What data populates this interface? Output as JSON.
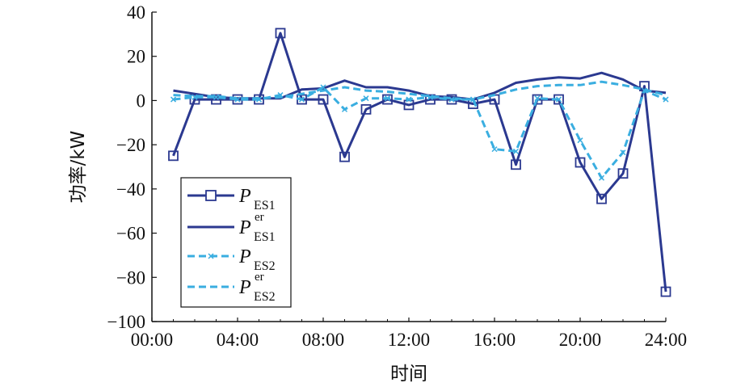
{
  "chart_data": {
    "type": "line",
    "title": "",
    "xlabel": "时间",
    "ylabel": "功率/kW",
    "xlim": [
      0,
      24
    ],
    "ylim": [
      -100,
      40
    ],
    "x_ticks": [
      "00:00",
      "04:00",
      "08:00",
      "12:00",
      "16:00",
      "20:00",
      "24:00"
    ],
    "y_ticks": [
      "40",
      "20",
      "0",
      "−20",
      "−40",
      "−60",
      "−80",
      "−100"
    ],
    "x": [
      1,
      2,
      3,
      4,
      5,
      6,
      7,
      8,
      9,
      10,
      11,
      12,
      13,
      14,
      15,
      16,
      17,
      18,
      19,
      20,
      21,
      22,
      23,
      24
    ],
    "grid": false,
    "legend_position": "lower-left",
    "series": [
      {
        "name": "P_ES1",
        "legend_main": "P",
        "legend_sub": "ES1",
        "legend_sup": "",
        "color": "#2b3990",
        "style": "solid",
        "marker": "square",
        "values": [
          -25,
          0.5,
          0.5,
          0.5,
          0.5,
          30.5,
          0.5,
          0.5,
          -25.5,
          -4,
          0.5,
          -2,
          0.5,
          0.5,
          -1.5,
          0.5,
          -29,
          0.5,
          0.5,
          -28,
          -44.5,
          -33,
          6.5,
          -86.5
        ]
      },
      {
        "name": "P_ES1^er",
        "legend_main": "P",
        "legend_sub": "ES1",
        "legend_sup": "er",
        "color": "#2b3990",
        "style": "solid",
        "marker": "none",
        "values": [
          4.5,
          3,
          1.5,
          1,
          1,
          1,
          5,
          5.5,
          9,
          6,
          6,
          4.5,
          2,
          1.5,
          0.5,
          3.5,
          8,
          9.5,
          10.5,
          10,
          12.5,
          9.5,
          4.5,
          3.5
        ]
      },
      {
        "name": "P_ES2",
        "legend_main": "P",
        "legend_sub": "ES2",
        "legend_sup": "",
        "color": "#3aaee0",
        "style": "dashed",
        "marker": "x",
        "values": [
          0.5,
          1.5,
          1.5,
          0.5,
          0.5,
          2.5,
          0.5,
          6,
          -4,
          1,
          1,
          0.5,
          1.5,
          0.5,
          0.5,
          -22,
          -23,
          1,
          0.5,
          -18,
          -35,
          -23.5,
          4.5,
          0.5
        ]
      },
      {
        "name": "P_ES2^er",
        "legend_main": "P",
        "legend_sub": "ES2",
        "legend_sup": "er",
        "color": "#3aaee0",
        "style": "dashed",
        "marker": "none",
        "values": [
          2.5,
          2,
          2,
          1,
          1,
          1.5,
          3,
          4.5,
          6,
          4.5,
          4,
          3,
          2,
          1,
          0.5,
          2.5,
          5,
          6.5,
          7,
          7,
          8.5,
          7,
          5,
          2.5
        ]
      }
    ]
  }
}
